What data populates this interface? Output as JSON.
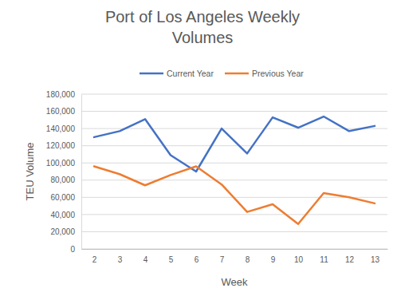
{
  "chart_data": {
    "type": "line",
    "title": "Port of Los Angeles Weekly Volumes",
    "x_label": "Week",
    "y_label": "TEU Volume",
    "categories": [
      "2",
      "3",
      "4",
      "5",
      "6",
      "7",
      "8",
      "9",
      "10",
      "11",
      "12",
      "13"
    ],
    "series": [
      {
        "name": "Current Year",
        "color": "#4472c4",
        "values": [
          130000,
          137000,
          151000,
          109000,
          90000,
          140000,
          111000,
          153000,
          141000,
          154000,
          137000,
          143000
        ]
      },
      {
        "name": "Previous Year",
        "color": "#ed7d31",
        "values": [
          96000,
          87000,
          74000,
          86000,
          96000,
          75000,
          43000,
          52000,
          29000,
          65000,
          60000,
          53000
        ]
      }
    ],
    "ylim": [
      0,
      180000
    ],
    "yticks": [
      0,
      {
        "value": 20000,
        "label": "20,000"
      },
      {
        "value": 40000,
        "label": "40,000"
      },
      {
        "value": 60000,
        "label": "60,000"
      },
      {
        "value": 80000,
        "label": "80,000"
      },
      {
        "value": 100000,
        "label": "100,000"
      },
      {
        "value": 120000,
        "label": "120,000"
      },
      {
        "value": 140000,
        "label": "140,000"
      },
      {
        "value": 160000,
        "label": "160,000"
      },
      {
        "value": 180000,
        "label": "180,000"
      }
    ],
    "grid": true,
    "legend": "top"
  }
}
